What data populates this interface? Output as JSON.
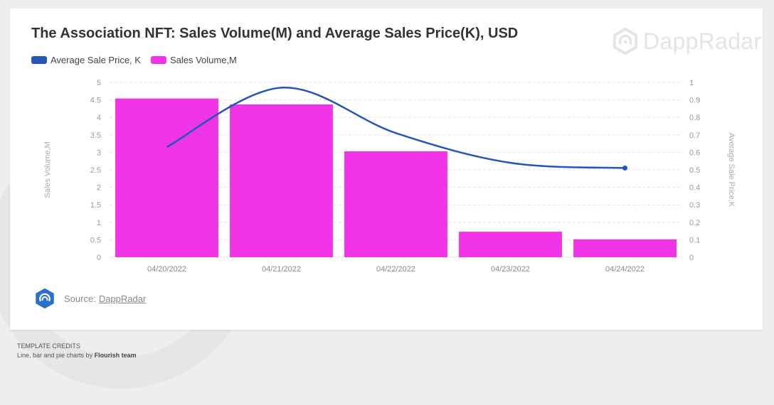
{
  "title": "The Association NFT: Sales Volume(M) and Average Sales Price(K), USD",
  "brand": {
    "name": "DappRadar"
  },
  "source": {
    "label": "Source:",
    "link_text": "DappRadar"
  },
  "credits": {
    "line1": "TEMPLATE CREDITS",
    "line2_prefix": "Line, bar and pie charts by",
    "line2_author": "Flourish team"
  },
  "colors": {
    "bar": "#f035e6",
    "line": "#2456b8"
  },
  "chart_data": {
    "type": "bar",
    "categories": [
      "04/20/2022",
      "04/21/2022",
      "04/22/2022",
      "04/23/2022",
      "04/24/2022"
    ],
    "series": [
      {
        "name": "Average Sale Price, K",
        "type": "line",
        "axis": "right",
        "values": [
          0.63,
          0.97,
          0.71,
          0.54,
          0.51
        ]
      },
      {
        "name": "Sales Volume,M",
        "type": "bar",
        "axis": "left",
        "values": [
          4.54,
          4.37,
          3.03,
          0.73,
          0.51
        ]
      }
    ],
    "ylabel": "Sales Volume,M",
    "y2label": "Average Sale Price,K",
    "ylim": [
      0,
      5
    ],
    "y2lim": [
      0,
      1
    ],
    "yticks": [
      "0",
      "0.5",
      "1",
      "1.5",
      "2",
      "2.5",
      "3",
      "3.5",
      "4",
      "4.5",
      "5"
    ],
    "y2ticks": [
      "0",
      "0.1",
      "0.2",
      "0.3",
      "0.4",
      "0.5",
      "0.6",
      "0.7",
      "0.8",
      "0.9",
      "1"
    ],
    "grid": true,
    "legend_position": "top-left"
  }
}
